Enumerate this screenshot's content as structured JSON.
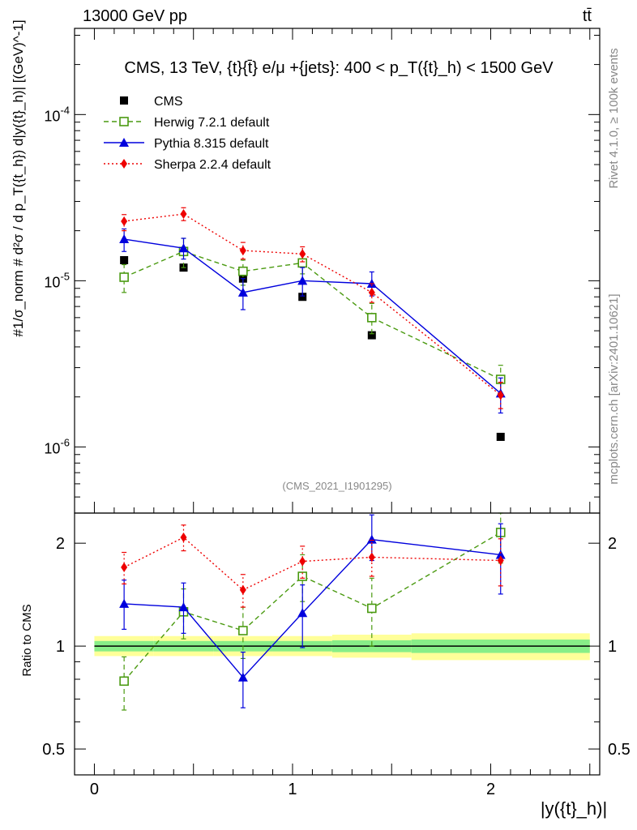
{
  "header": {
    "left": "13000 GeV pp",
    "right": "tt̄"
  },
  "side_labels": {
    "rivet": "Rivet 4.1.0, ≥ 100k events",
    "mcplots": "mcplots.cern.ch [arXiv:2401.10621]"
  },
  "chart_data": [
    {
      "type": "line",
      "panel": "main",
      "title": "CMS, 13 TeV, {t}{t̄} e/μ +{jets}: 400 <  p_T({t}_h) < 1500 GeV",
      "ylabel": "#1/σ_norm # d²σ / d p_T({t_h}) d|y({t}_h)| [(GeV)^-1]",
      "xlabel": "|y({t}_h)|",
      "yscale": "log",
      "xlim": [
        -0.1,
        2.55
      ],
      "ylim": [
        4e-07,
        0.00033
      ],
      "watermark": "(CMS_2021_I1901295)",
      "y_tick_labels": [
        "10^-6",
        "10^-5",
        "10^-4"
      ],
      "x": [
        0.15,
        0.45,
        0.75,
        1.05,
        1.4,
        2.05
      ],
      "series": [
        {
          "name": "CMS",
          "color": "#000000",
          "style": "markers",
          "marker": "square-filled",
          "values": [
            1.33e-05,
            1.2e-05,
            1.03e-05,
            8e-06,
            4.7e-06,
            1.15e-06
          ]
        },
        {
          "name": "Herwig 7.2.1 default",
          "color": "#4a9a10",
          "style": "dashed",
          "marker": "square-open",
          "values": [
            1.05e-05,
            1.5e-05,
            1.14e-05,
            1.28e-05,
            6e-06,
            2.55e-06
          ],
          "err_lo": [
            8.5e-06,
            1.2e-05,
            9.4e-06,
            1.1e-05,
            4.8e-06,
            2e-06
          ],
          "err_hi": [
            1.25e-05,
            1.8e-05,
            1.33e-05,
            1.45e-05,
            7.3e-06,
            3.1e-06
          ]
        },
        {
          "name": "Pythia 8.315 default",
          "color": "#0000dd",
          "style": "solid",
          "marker": "triangle",
          "values": [
            1.78e-05,
            1.57e-05,
            8.5e-06,
            1e-05,
            9.6e-06,
            2.1e-06
          ],
          "err_lo": [
            1.5e-05,
            1.35e-05,
            6.7e-06,
            8.1e-06,
            8.1e-06,
            1.6e-06
          ],
          "err_hi": [
            2.05e-05,
            1.8e-05,
            1.03e-05,
            1.2e-05,
            1.13e-05,
            2.6e-06
          ]
        },
        {
          "name": "Sherpa 2.2.4 default",
          "color": "#ee0000",
          "style": "dotted",
          "marker": "diamond",
          "values": [
            2.28e-05,
            2.52e-05,
            1.52e-05,
            1.45e-05,
            8.5e-06,
            2.05e-06
          ],
          "err_lo": [
            2e-05,
            2.3e-05,
            1.35e-05,
            1.3e-05,
            7.4e-06,
            1.7e-06
          ],
          "err_hi": [
            2.5e-05,
            2.75e-05,
            1.7e-05,
            1.6e-05,
            9.6e-06,
            2.45e-06
          ]
        }
      ]
    },
    {
      "type": "line",
      "panel": "ratio",
      "ylabel": "Ratio to CMS",
      "xlabel": "|y({t}_h)|",
      "yscale": "log",
      "xlim": [
        -0.1,
        2.55
      ],
      "ylim": [
        0.42,
        2.45
      ],
      "y_ticks": [
        0.5,
        1,
        2
      ],
      "y_tick_labels": [
        "0.5",
        "1",
        "2"
      ],
      "x_ticks": [
        0,
        1,
        2
      ],
      "x_tick_labels": [
        "0",
        "1",
        "2"
      ],
      "band_bins": [
        [
          0.0,
          0.3
        ],
        [
          0.3,
          0.6
        ],
        [
          0.6,
          0.9
        ],
        [
          0.9,
          1.2
        ],
        [
          1.2,
          1.6
        ],
        [
          1.6,
          2.5
        ]
      ],
      "band_green_lo": [
        0.965,
        0.965,
        0.965,
        0.965,
        0.96,
        0.955
      ],
      "band_green_hi": [
        1.035,
        1.035,
        1.035,
        1.035,
        1.04,
        1.045
      ],
      "band_yellow_lo": [
        0.935,
        0.935,
        0.935,
        0.935,
        0.925,
        0.91
      ],
      "band_yellow_hi": [
        1.07,
        1.07,
        1.07,
        1.07,
        1.08,
        1.09
      ],
      "x": [
        0.15,
        0.45,
        0.75,
        1.05,
        1.4,
        2.05
      ],
      "series": [
        {
          "name": "Herwig 7.2.1 default",
          "color": "#4a9a10",
          "style": "dashed",
          "marker": "square-open",
          "values": [
            0.79,
            1.26,
            1.11,
            1.6,
            1.29,
            2.15
          ],
          "err_lo": [
            0.65,
            1.05,
            0.92,
            1.35,
            1.0,
            1.75
          ],
          "err_hi": [
            0.93,
            1.47,
            1.3,
            1.85,
            1.58,
            2.45
          ]
        },
        {
          "name": "Pythia 8.315 default",
          "color": "#0000dd",
          "style": "solid",
          "marker": "triangle",
          "values": [
            1.33,
            1.3,
            0.81,
            1.25,
            2.05,
            1.85
          ],
          "err_lo": [
            1.12,
            1.09,
            0.66,
            0.99,
            1.78,
            1.42
          ],
          "err_hi": [
            1.56,
            1.53,
            0.96,
            1.51,
            2.42,
            2.28
          ]
        },
        {
          "name": "Sherpa 2.2.4 default",
          "color": "#ee0000",
          "style": "dotted",
          "marker": "diamond",
          "values": [
            1.7,
            2.08,
            1.46,
            1.77,
            1.82,
            1.78
          ],
          "err_lo": [
            1.52,
            1.9,
            1.3,
            1.58,
            1.6,
            1.5
          ],
          "err_hi": [
            1.88,
            2.26,
            1.62,
            1.96,
            2.04,
            2.06
          ]
        }
      ]
    }
  ]
}
